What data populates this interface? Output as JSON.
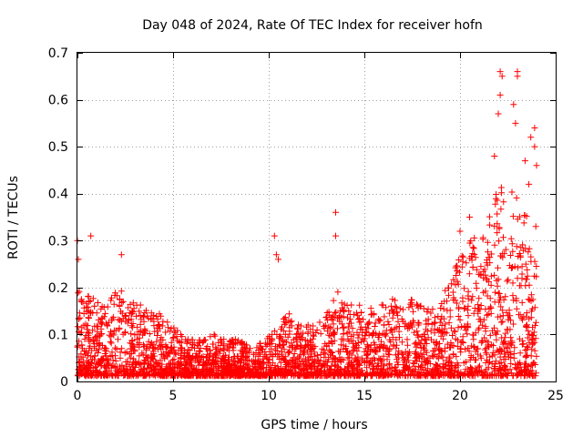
{
  "chart_data": {
    "type": "scatter",
    "title": "Day 048 of 2024, Rate Of TEC Index for receiver hofn",
    "xlabel": "GPS time / hours",
    "ylabel": "ROTI / TECUs",
    "xlim": [
      0,
      25
    ],
    "ylim": [
      0,
      0.7
    ],
    "xticks": [
      0,
      5,
      10,
      15,
      20,
      25
    ],
    "yticks": [
      0,
      0.1,
      0.2,
      0.3,
      0.4,
      0.5,
      0.6,
      0.7
    ],
    "x_tick_labels": [
      "0",
      "5",
      "10",
      "15",
      "20",
      "25"
    ],
    "y_tick_labels": [
      "0",
      "0.1",
      "0.2",
      "0.3",
      "0.4",
      "0.5",
      "0.6",
      "0.7"
    ],
    "grid": true,
    "marker": "plus",
    "color": "#ff0000",
    "envelope": {
      "description": "approximate upper envelope of the dense point cloud, hours vs ROTI",
      "x": [
        0,
        0.5,
        1,
        1.5,
        2,
        2.5,
        3,
        3.5,
        4,
        4.5,
        5,
        5.5,
        6,
        6.5,
        7,
        7.5,
        8,
        8.5,
        9,
        9.5,
        10,
        10.5,
        11,
        11.5,
        12,
        12.5,
        13,
        13.5,
        14,
        14.5,
        15,
        15.5,
        16,
        16.5,
        17,
        17.5,
        18,
        18.5,
        19,
        19.5,
        20,
        20.5,
        21,
        21.5,
        22,
        22.5,
        23,
        23.5,
        24
      ],
      "y": [
        0.2,
        0.19,
        0.17,
        0.16,
        0.21,
        0.19,
        0.17,
        0.16,
        0.15,
        0.14,
        0.12,
        0.1,
        0.09,
        0.09,
        0.1,
        0.1,
        0.09,
        0.09,
        0.08,
        0.08,
        0.1,
        0.12,
        0.15,
        0.12,
        0.13,
        0.12,
        0.14,
        0.2,
        0.17,
        0.16,
        0.17,
        0.16,
        0.17,
        0.18,
        0.17,
        0.18,
        0.17,
        0.16,
        0.18,
        0.22,
        0.27,
        0.3,
        0.32,
        0.35,
        0.42,
        0.4,
        0.42,
        0.35,
        0.34
      ]
    },
    "notable_points": [
      {
        "x": 0.0,
        "y": 0.3
      },
      {
        "x": 0.05,
        "y": 0.26
      },
      {
        "x": 0.7,
        "y": 0.31
      },
      {
        "x": 2.3,
        "y": 0.27
      },
      {
        "x": 10.3,
        "y": 0.31
      },
      {
        "x": 10.4,
        "y": 0.27
      },
      {
        "x": 10.5,
        "y": 0.26
      },
      {
        "x": 13.5,
        "y": 0.36
      },
      {
        "x": 13.5,
        "y": 0.31
      },
      {
        "x": 20.0,
        "y": 0.32
      },
      {
        "x": 20.5,
        "y": 0.35
      },
      {
        "x": 21.8,
        "y": 0.48
      },
      {
        "x": 22.0,
        "y": 0.57
      },
      {
        "x": 22.1,
        "y": 0.66
      },
      {
        "x": 22.2,
        "y": 0.65
      },
      {
        "x": 22.1,
        "y": 0.61
      },
      {
        "x": 22.8,
        "y": 0.59
      },
      {
        "x": 22.9,
        "y": 0.55
      },
      {
        "x": 23.0,
        "y": 0.65
      },
      {
        "x": 23.0,
        "y": 0.66
      },
      {
        "x": 23.4,
        "y": 0.47
      },
      {
        "x": 23.6,
        "y": 0.42
      },
      {
        "x": 23.7,
        "y": 0.52
      },
      {
        "x": 23.9,
        "y": 0.54
      },
      {
        "x": 23.9,
        "y": 0.5
      },
      {
        "x": 24.0,
        "y": 0.46
      }
    ]
  }
}
